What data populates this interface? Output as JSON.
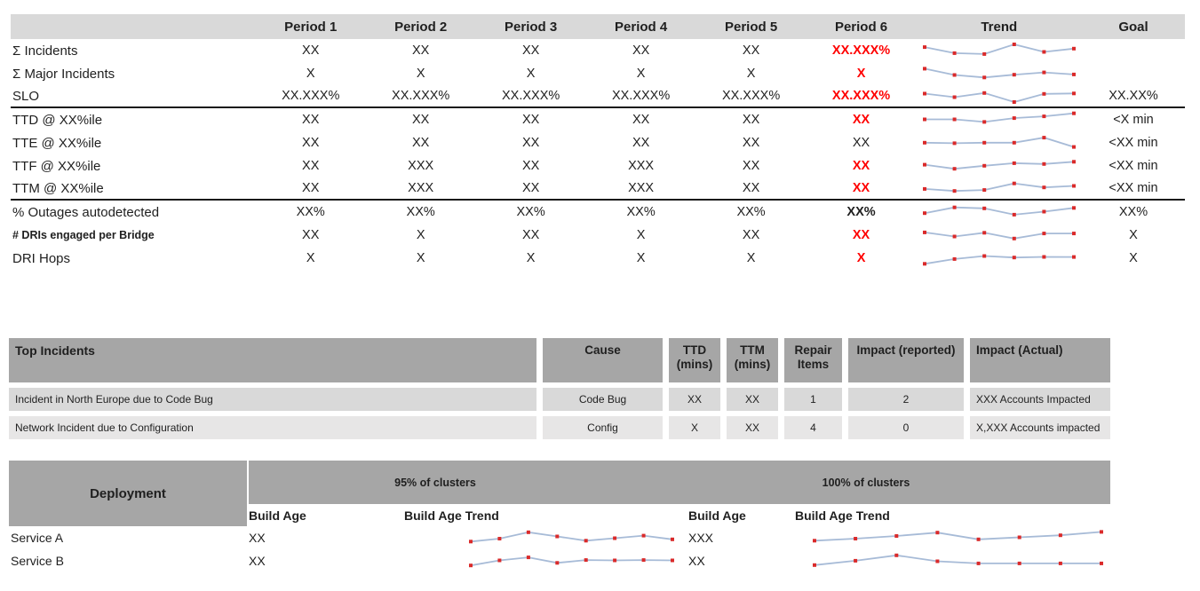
{
  "colors": {
    "metrics_header_bg": "#d9d9d9",
    "section_header_bg": "#a6a6a6",
    "incident_row1_bg": "#d9d9d9",
    "incident_row2_bg": "#e7e6e6",
    "alert_red": "#ff0000",
    "spark_line": "#a7bbd7",
    "spark_marker": "#da2a2a",
    "divider": "#1a1a1a"
  },
  "metrics_table": {
    "period_headers": [
      "Period 1",
      "Period 2",
      "Period 3",
      "Period 4",
      "Period 5",
      "Period 6"
    ],
    "trend_header": "Trend",
    "goal_header": "Goal",
    "rows": [
      {
        "label": "Σ Incidents",
        "values": [
          "XX",
          "XX",
          "XX",
          "XX",
          "XX"
        ],
        "period6": "XX.XXX%",
        "period6_style": "red-bold",
        "goal": "",
        "spark": [
          0.7,
          0.3,
          0.24,
          0.88,
          0.38,
          0.6
        ],
        "divider_below": false,
        "small_label": false
      },
      {
        "label": "Σ Major Incidents",
        "values": [
          "X",
          "X",
          "X",
          "X",
          "X"
        ],
        "period6": "X",
        "period6_style": "red-bold",
        "goal": "",
        "spark": [
          0.8,
          0.38,
          0.22,
          0.4,
          0.55,
          0.42
        ],
        "divider_below": false,
        "small_label": false
      },
      {
        "label": "SLO",
        "values": [
          "XX.XXX%",
          "XX.XXX%",
          "XX.XXX%",
          "XX.XXX%",
          "XX.XXX%"
        ],
        "period6": "XX.XXX%",
        "period6_style": "red-bold",
        "goal": "XX.XX%",
        "spark": [
          0.62,
          0.38,
          0.66,
          0.06,
          0.6,
          0.63
        ],
        "divider_below": true,
        "small_label": false
      },
      {
        "label": "TTD @ XX%ile",
        "values": [
          "XX",
          "XX",
          "XX",
          "XX",
          "XX"
        ],
        "period6": "XX",
        "period6_style": "red-bold",
        "goal": "<X min",
        "spark": [
          0.5,
          0.5,
          0.33,
          0.58,
          0.7,
          0.9
        ],
        "divider_below": false,
        "small_label": false
      },
      {
        "label": "TTE @ XX%ile",
        "values": [
          "XX",
          "XX",
          "XX",
          "XX",
          "XX"
        ],
        "period6": "XX",
        "period6_style": "normal",
        "goal": "<XX min",
        "spark": [
          0.48,
          0.45,
          0.48,
          0.48,
          0.82,
          0.2
        ],
        "divider_below": false,
        "small_label": false
      },
      {
        "label": "TTF @ XX%ile",
        "values": [
          "XX",
          "XXX",
          "XX",
          "XXX",
          "XX"
        ],
        "period6": "XX",
        "period6_style": "red-bold",
        "goal": "<XX min",
        "spark": [
          0.55,
          0.28,
          0.48,
          0.65,
          0.6,
          0.75
        ],
        "divider_below": false,
        "small_label": false
      },
      {
        "label": "TTM @ XX%ile",
        "values": [
          "XX",
          "XXX",
          "XX",
          "XXX",
          "XX"
        ],
        "period6": "XX",
        "period6_style": "red-bold",
        "goal": "<XX min",
        "spark": [
          0.42,
          0.28,
          0.35,
          0.78,
          0.52,
          0.62
        ],
        "divider_below": true,
        "small_label": false
      },
      {
        "label": "% Outages autodetected",
        "values": [
          "XX%",
          "XX%",
          "XX%",
          "XX%",
          "XX%"
        ],
        "period6": "XX%",
        "period6_style": "bold",
        "goal": "XX%",
        "spark": [
          0.4,
          0.78,
          0.72,
          0.3,
          0.5,
          0.75
        ],
        "divider_below": false,
        "small_label": false
      },
      {
        "label": "# DRIs engaged per Bridge",
        "values": [
          "XX",
          "X",
          "XX",
          "X",
          "XX"
        ],
        "period6": "XX",
        "period6_style": "red-bold",
        "goal": "X",
        "spark": [
          0.65,
          0.38,
          0.63,
          0.25,
          0.58,
          0.58
        ],
        "divider_below": false,
        "small_label": true
      },
      {
        "label": "DRI Hops",
        "values": [
          "X",
          "X",
          "X",
          "X",
          "X"
        ],
        "period6": "X",
        "period6_style": "red-bold",
        "goal": "X",
        "spark": [
          0.1,
          0.42,
          0.62,
          0.52,
          0.56,
          0.55
        ],
        "divider_below": false,
        "small_label": false
      }
    ]
  },
  "incidents_table": {
    "title": "Top Incidents",
    "columns": [
      "Cause",
      "TTD (mins)",
      "TTM (mins)",
      "Repair Items",
      "Impact (reported)",
      "Impact (Actual)"
    ],
    "rows": [
      {
        "name": "Incident in North Europe due to Code Bug",
        "cause": "Code Bug",
        "ttd": "XX",
        "ttm": "XX",
        "repair_items": "1",
        "impact_reported": "2",
        "impact_actual": "XXX Accounts Impacted"
      },
      {
        "name": "Network Incident due to Configuration",
        "cause": "Config",
        "ttd": "X",
        "ttm": "XX",
        "repair_items": "4",
        "impact_reported": "0",
        "impact_actual": "X,XXX Accounts impacted"
      }
    ]
  },
  "deployment_table": {
    "title": "Deployment",
    "groups": [
      "95% of clusters",
      "100% of clusters"
    ],
    "subheaders": [
      "Build Age",
      "Build Age Trend",
      "Build Age",
      "Build Age Trend"
    ],
    "rows": [
      {
        "label": "Service A",
        "build_age_95": "XX",
        "spark_95": [
          0.25,
          0.42,
          0.8,
          0.55,
          0.3,
          0.45,
          0.6,
          0.38
        ],
        "build_age_100": "XXX",
        "spark_100": [
          0.3,
          0.42,
          0.58,
          0.78,
          0.38,
          0.5,
          0.62,
          0.82
        ]
      },
      {
        "label": "Service B",
        "build_age_95": "XX",
        "spark_95": [
          0.2,
          0.5,
          0.68,
          0.35,
          0.52,
          0.5,
          0.52,
          0.5
        ],
        "build_age_100": "XX",
        "spark_100": [
          0.22,
          0.48,
          0.8,
          0.45,
          0.32,
          0.32,
          0.32,
          0.32
        ]
      }
    ]
  }
}
